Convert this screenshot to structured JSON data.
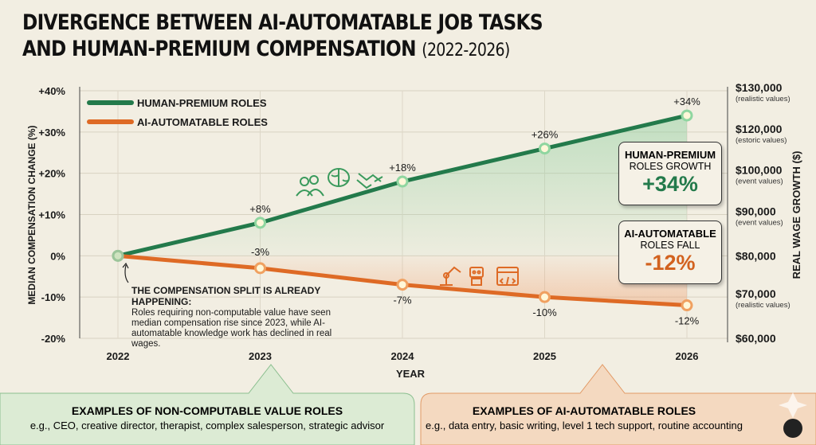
{
  "title": {
    "main_line1": "DIVERGENCE BETWEEN AI-AUTOMATABLE JOB TASKS",
    "main_line2": "AND HUMAN-PREMIUM COMPENSATION",
    "subtitle": "(2022-2026)"
  },
  "colors": {
    "green": "#237a4b",
    "green_light": "#6fbf7f",
    "orange": "#de6a25",
    "background": "#f2eee2"
  },
  "chart_data": {
    "type": "line",
    "x": [
      "2022",
      "2023",
      "2024",
      "2025",
      "2026"
    ],
    "xlabel": "YEAR",
    "ylabel": "MEDIAN COMPENSATION CHANGE (%)",
    "ylim": [
      -20,
      40
    ],
    "yticks": [
      "+40%",
      "+30%",
      "+20%",
      "+10%",
      "0%",
      "-10%",
      "-20%"
    ],
    "y2label": "REAL WAGE GROWTH ($)",
    "y2ticks": [
      {
        "value": "$130,000",
        "note": "(realistic values)"
      },
      {
        "value": "$120,000",
        "note": "(estoric values)"
      },
      {
        "value": "$100,000",
        "note": "(event values)"
      },
      {
        "value": "$90,000",
        "note": "(event values)"
      },
      {
        "value": "$80,000",
        "note": ""
      },
      {
        "value": "$70,000",
        "note": "(realistic values)"
      },
      {
        "value": "$60,000",
        "note": ""
      }
    ],
    "grid": true,
    "legend": "top-left",
    "series": [
      {
        "name": "HUMAN-PREMIUM ROLES",
        "values": [
          0,
          8,
          18,
          26,
          34
        ],
        "labels": [
          "",
          "+8%",
          "+18%",
          "+26%",
          "+34%"
        ]
      },
      {
        "name": "AI-AUTOMATABLE ROLES",
        "values": [
          0,
          -3,
          -7,
          -10,
          -12
        ],
        "labels": [
          "",
          "-3%",
          "-7%",
          "-10%",
          "-12%"
        ]
      }
    ]
  },
  "annotation": {
    "heading": "THE COMPENSATION SPLIT IS ALREADY HAPPENING:",
    "body": "Roles requiring non-computable value have seen median compensation rise since 2023, while AI-automatable knowledge work has declined in real wages."
  },
  "callouts": {
    "human": {
      "line1": "HUMAN-PREMIUM",
      "line2": "ROLES GROWTH",
      "value": "+34%"
    },
    "ai": {
      "line1": "AI-AUTOMATABLE",
      "line2": "ROLES FALL",
      "value": "-12%"
    }
  },
  "panels": {
    "left": {
      "heading": "EXAMPLES OF NON-COMPUTABLE VALUE ROLES",
      "text": "e.g., CEO, creative director, therapist, complex salesperson, strategic advisor"
    },
    "right": {
      "heading": "EXAMPLES OF AI-AUTOMATABLE ROLES",
      "text": "e.g., data entry, basic writing, level 1 tech support, routine accounting"
    }
  },
  "icons": {
    "human_group": [
      "people-icon",
      "brain-icon",
      "handshake-icon"
    ],
    "ai_group": [
      "robot-arm-icon",
      "robot-icon",
      "code-window-icon"
    ]
  }
}
